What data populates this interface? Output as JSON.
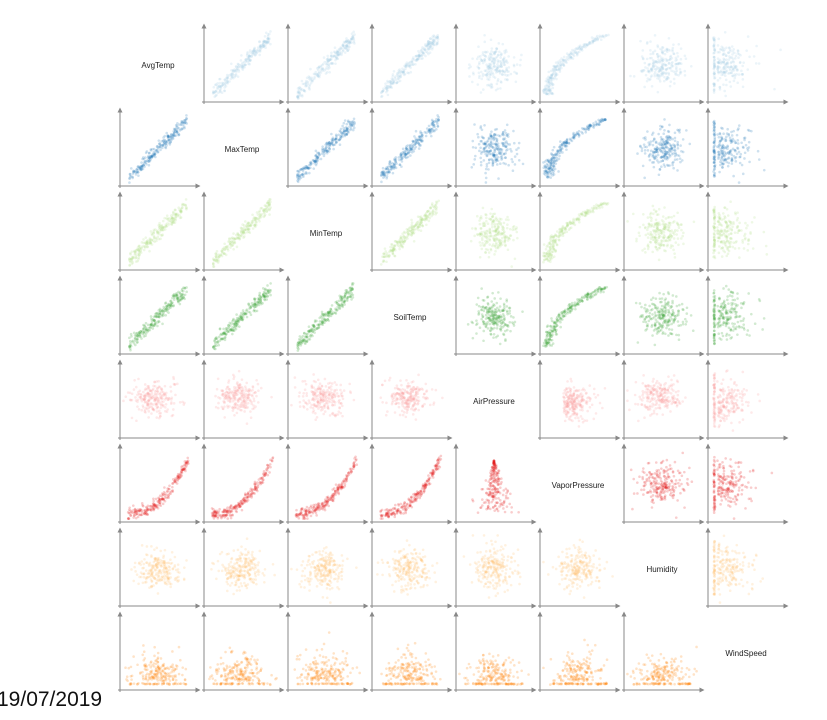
{
  "chart_data": {
    "type": "scatter_matrix",
    "variables": [
      "AvgTemp",
      "MaxTemp",
      "MinTemp",
      "SoilTemp",
      "AirPressure",
      "VaporPressure",
      "Humidity",
      "WindSpeed"
    ],
    "colors": [
      "#a6cee3",
      "#1f78b4",
      "#b2df8a",
      "#33a02c",
      "#fb9a99",
      "#e31a1c",
      "#fdbf6f",
      "#ff7f00"
    ]
  },
  "footer": {
    "date": "19/07/2019"
  }
}
